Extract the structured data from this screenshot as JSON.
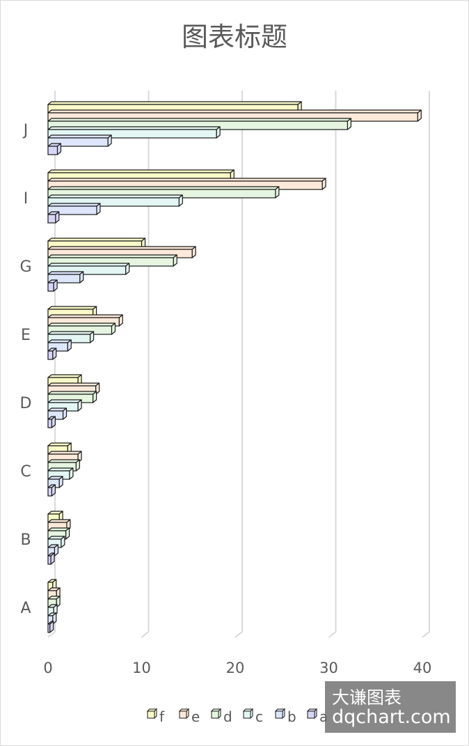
{
  "chart_data": {
    "type": "bar",
    "orientation": "horizontal",
    "style": "3d-clustered",
    "title": "图表标题",
    "categories": [
      "A",
      "B",
      "C",
      "D",
      "E",
      "G",
      "I",
      "J"
    ],
    "series": [
      {
        "name": "a",
        "color": "#d6d6f7",
        "values": [
          0.2,
          0.3,
          0.4,
          0.4,
          0.5,
          0.6,
          0.8,
          1.0
        ]
      },
      {
        "name": "b",
        "color": "#dde6fb",
        "values": [
          0.5,
          0.7,
          1.2,
          1.6,
          2.1,
          3.4,
          5.2,
          6.4
        ]
      },
      {
        "name": "c",
        "color": "#e3f6f3",
        "values": [
          0.6,
          1.4,
          2.3,
          3.2,
          4.5,
          8.3,
          14.0,
          18.0
        ]
      },
      {
        "name": "d",
        "color": "#e5f5e0",
        "values": [
          0.9,
          1.9,
          3.0,
          4.8,
          6.8,
          13.4,
          24.3,
          32.0
        ]
      },
      {
        "name": "e",
        "color": "#fde9d9",
        "values": [
          0.9,
          2.0,
          3.2,
          5.1,
          7.6,
          15.4,
          29.3,
          39.5
        ]
      },
      {
        "name": "f",
        "color": "#fafac8",
        "values": [
          0.5,
          1.2,
          2.1,
          3.2,
          4.8,
          10.0,
          19.5,
          26.7
        ]
      }
    ],
    "x_ticks": [
      "0",
      "10",
      "20",
      "30",
      "40"
    ],
    "xlim": [
      0,
      40
    ],
    "grid": true,
    "legend": {
      "position": "bottom",
      "order": [
        "f",
        "e",
        "d",
        "c",
        "b",
        "a"
      ]
    }
  },
  "watermark": {
    "line1": "大谦图表",
    "line2": "dqchart.com"
  }
}
